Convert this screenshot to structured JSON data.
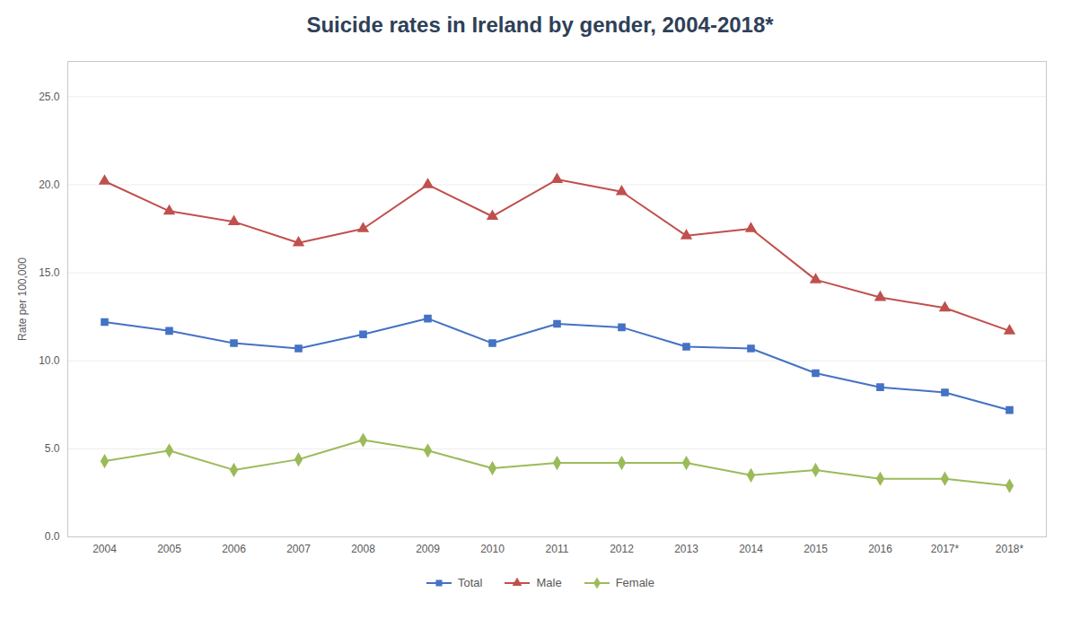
{
  "chart_data": {
    "type": "line",
    "title": "Suicide rates in Ireland by gender,  2004-2018*",
    "ylabel": "Rate per 100,000",
    "categories": [
      "2004",
      "2005",
      "2006",
      "2007",
      "2008",
      "2009",
      "2010",
      "2011",
      "2012",
      "2013",
      "2014",
      "2015",
      "2016",
      "2017*",
      "2018*"
    ],
    "series": [
      {
        "name": "Total",
        "color": "#4472C4",
        "marker": "square",
        "values": [
          12.2,
          11.7,
          11.0,
          10.7,
          11.5,
          12.4,
          11.0,
          12.1,
          11.9,
          10.8,
          10.7,
          9.3,
          8.5,
          8.2,
          7.2
        ]
      },
      {
        "name": "Male",
        "color": "#C0504D",
        "marker": "triangle",
        "values": [
          20.2,
          18.5,
          17.9,
          16.7,
          17.5,
          20.0,
          18.2,
          20.3,
          19.6,
          17.1,
          17.5,
          14.6,
          13.6,
          13.0,
          11.7
        ]
      },
      {
        "name": "Female",
        "color": "#9BBB59",
        "marker": "diamond",
        "values": [
          4.3,
          4.9,
          3.8,
          4.4,
          5.5,
          4.9,
          3.9,
          4.2,
          4.2,
          4.2,
          3.5,
          3.8,
          3.3,
          3.3,
          2.9
        ]
      }
    ],
    "ylim": [
      0,
      27
    ],
    "yticks": [
      {
        "value": 0,
        "label": "0.0"
      },
      {
        "value": 5,
        "label": "5.0"
      },
      {
        "value": 10,
        "label": "10.0"
      },
      {
        "value": 15,
        "label": "15.0"
      },
      {
        "value": 20,
        "label": "20.0"
      },
      {
        "value": 25,
        "label": "25.0"
      }
    ],
    "grid": true,
    "legend": "bottom"
  }
}
